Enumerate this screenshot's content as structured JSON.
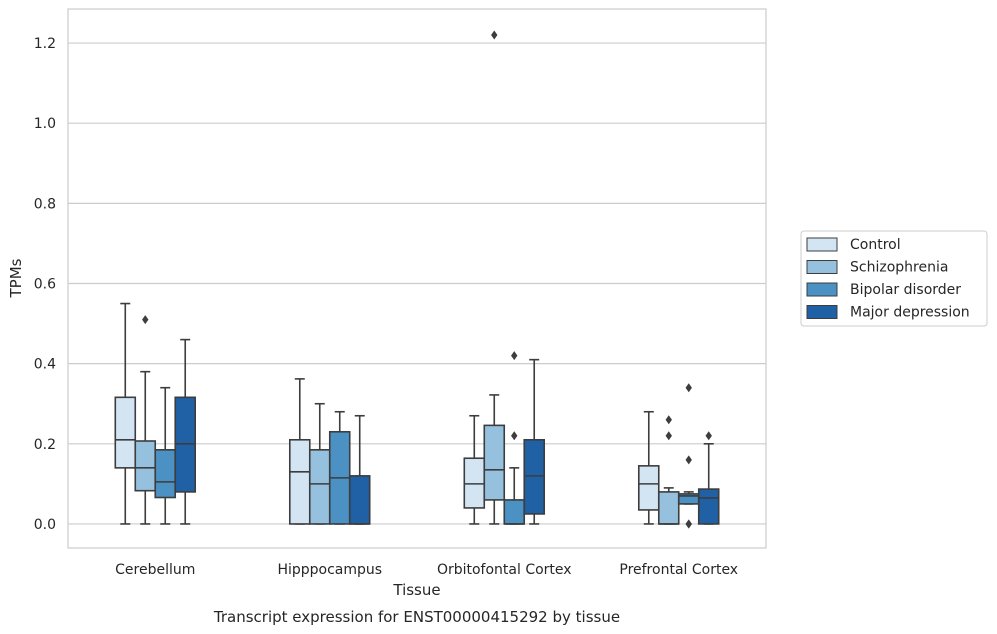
{
  "chart_data": {
    "type": "boxplot",
    "title": "",
    "caption": "Transcript expression for ENST00000415292 by tissue",
    "xlabel": "Tissue",
    "ylabel": "TPMs",
    "ylim": [
      -0.06,
      1.285
    ],
    "yticks": [
      0.0,
      0.2,
      0.4,
      0.6,
      0.8,
      1.0,
      1.2
    ],
    "ytick_labels": [
      "0.0",
      "0.2",
      "0.4",
      "0.6",
      "0.8",
      "1.0",
      "1.2"
    ],
    "grid": "horizontal",
    "legend_position": "right",
    "categories": [
      "Cerebellum",
      "Hipppocampus",
      "Orbitofontal Cortex",
      "Prefrontal Cortex"
    ],
    "series": [
      {
        "name": "Control",
        "color": "#d3e4f3",
        "boxes": [
          {
            "whislo": 0.0,
            "q1": 0.14,
            "med": 0.21,
            "q3": 0.316,
            "whishi": 0.55,
            "fliers": []
          },
          {
            "whislo": 0.0,
            "q1": 0.0,
            "med": 0.13,
            "q3": 0.21,
            "whishi": 0.362,
            "fliers": []
          },
          {
            "whislo": 0.0,
            "q1": 0.04,
            "med": 0.1,
            "q3": 0.164,
            "whishi": 0.27,
            "fliers": []
          },
          {
            "whislo": 0.0,
            "q1": 0.035,
            "med": 0.1,
            "q3": 0.145,
            "whishi": 0.28,
            "fliers": []
          }
        ]
      },
      {
        "name": "Schizophrenia",
        "color": "#95c0de",
        "boxes": [
          {
            "whislo": 0.0,
            "q1": 0.083,
            "med": 0.14,
            "q3": 0.207,
            "whishi": 0.38,
            "fliers": [
              0.51
            ]
          },
          {
            "whislo": 0.0,
            "q1": 0.0,
            "med": 0.1,
            "q3": 0.185,
            "whishi": 0.3,
            "fliers": []
          },
          {
            "whislo": 0.0,
            "q1": 0.06,
            "med": 0.135,
            "q3": 0.246,
            "whishi": 0.322,
            "fliers": [
              1.22
            ]
          },
          {
            "whislo": 0.0,
            "q1": 0.0,
            "med": 0.0,
            "q3": 0.08,
            "whishi": 0.09,
            "fliers": [
              0.22,
              0.26
            ]
          }
        ]
      },
      {
        "name": "Bipolar disorder",
        "color": "#4b91c3",
        "boxes": [
          {
            "whislo": 0.0,
            "q1": 0.066,
            "med": 0.105,
            "q3": 0.185,
            "whishi": 0.34,
            "fliers": []
          },
          {
            "whislo": 0.0,
            "q1": 0.0,
            "med": 0.115,
            "q3": 0.23,
            "whishi": 0.28,
            "fliers": []
          },
          {
            "whislo": 0.0,
            "q1": 0.0,
            "med": 0.0,
            "q3": 0.06,
            "whishi": 0.14,
            "fliers": [
              0.22,
              0.42
            ]
          },
          {
            "whislo": 0.05,
            "q1": 0.05,
            "med": 0.07,
            "q3": 0.075,
            "whishi": 0.08,
            "fliers": [
              0.0,
              0.0,
              0.16,
              0.34
            ]
          }
        ]
      },
      {
        "name": "Major depression",
        "color": "#2060a4",
        "boxes": [
          {
            "whislo": 0.0,
            "q1": 0.08,
            "med": 0.2,
            "q3": 0.316,
            "whishi": 0.46,
            "fliers": []
          },
          {
            "whislo": 0.0,
            "q1": 0.0,
            "med": 0.0,
            "q3": 0.12,
            "whishi": 0.27,
            "fliers": []
          },
          {
            "whislo": 0.0,
            "q1": 0.025,
            "med": 0.12,
            "q3": 0.21,
            "whishi": 0.41,
            "fliers": []
          },
          {
            "whislo": 0.0,
            "q1": 0.0,
            "med": 0.065,
            "q3": 0.087,
            "whishi": 0.2,
            "fliers": [
              0.22
            ]
          }
        ]
      }
    ],
    "colors": {
      "grid": "#cccccc",
      "frame": "#cccccc",
      "edge": "#3d3d3d",
      "text": "#262626"
    }
  }
}
